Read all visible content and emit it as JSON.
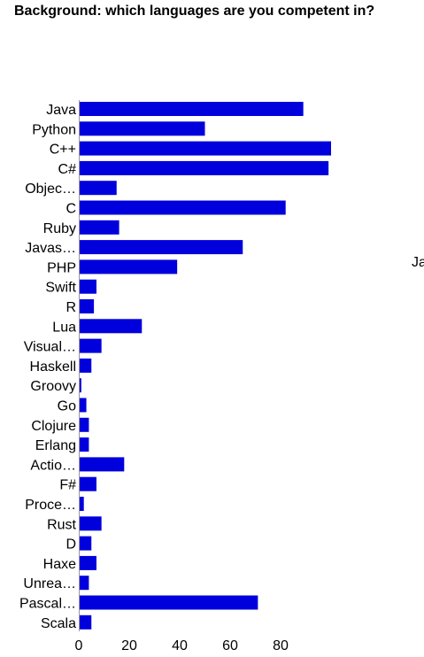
{
  "chart_data": {
    "type": "bar",
    "orientation": "horizontal",
    "title": "Background: which languages are you competent in?",
    "categories": [
      "Java",
      "Python",
      "C++",
      "C#",
      "Objec…",
      "C",
      "Ruby",
      "Javas…",
      "PHP",
      "Swift",
      "R",
      "Lua",
      "Visual…",
      "Haskell",
      "Groovy",
      "Go",
      "Clojure",
      "Erlang",
      "Actio…",
      "F#",
      "Proce…",
      "Rust",
      "D",
      "Haxe",
      "Unrea…",
      "Pascal…",
      "Scala"
    ],
    "values": [
      89,
      50,
      100,
      99,
      15,
      82,
      16,
      65,
      39,
      7,
      6,
      25,
      9,
      5,
      1,
      3,
      4,
      4,
      18,
      7,
      2,
      9,
      5,
      7,
      4,
      71,
      5
    ],
    "xlim": [
      0,
      100
    ],
    "xticks": [
      0,
      20,
      40,
      60,
      80
    ],
    "grid": false,
    "legend": "none",
    "side_label": "Ja",
    "bar_color": "#0000dd"
  }
}
